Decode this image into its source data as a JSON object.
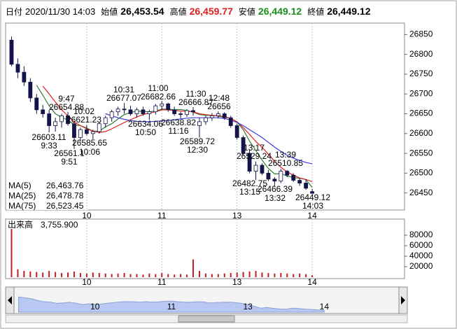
{
  "header": [
    {
      "label": "日付",
      "value": "2020/11/30 14:03"
    },
    {
      "label": "始値",
      "value": "26,453.54",
      "color": "#000000"
    },
    {
      "label": "高値",
      "value": "26,459.77",
      "color": "#e01e1e"
    },
    {
      "label": "安値",
      "value": "26,449.12",
      "color": "#1a8f1a"
    },
    {
      "label": "終値",
      "value": "26,449.12",
      "color": "#000000"
    }
  ],
  "chart_data": [
    {
      "type": "candlestick",
      "categories": [
        null,
        null,
        null,
        null,
        null,
        null,
        null,
        null,
        null,
        null,
        null,
        null,
        "10",
        null,
        null,
        null,
        null,
        null,
        null,
        null,
        null,
        null,
        null,
        null,
        "11",
        null,
        null,
        null,
        null,
        null,
        null,
        null,
        null,
        null,
        null,
        null,
        "13",
        null,
        null,
        null,
        null,
        null,
        null,
        null,
        null,
        null,
        null,
        null,
        "14"
      ],
      "open": [
        26836,
        26775,
        26755,
        26730,
        26690,
        26660,
        26650,
        26620,
        26630,
        26645,
        26625,
        26590,
        26610,
        26600,
        26605,
        26625,
        26640,
        26655,
        26662,
        26660,
        26650,
        26660,
        26650,
        26655,
        26670,
        26675,
        26660,
        26650,
        26648,
        26658,
        26620,
        26630,
        26640,
        26645,
        26650,
        26640,
        26620,
        26590,
        26550,
        26505,
        26520,
        26500,
        26485,
        26480,
        26505,
        26495,
        26482,
        26475,
        26453.54
      ],
      "high": [
        26845,
        26790,
        26770,
        26740,
        26700,
        26672,
        26660,
        26640,
        26650,
        26654.88,
        26630,
        26615,
        26621.23,
        26610,
        26630,
        26645,
        26660,
        26668,
        26677.07,
        26670,
        26665,
        26668,
        26660,
        26675,
        26682.66,
        26678,
        26668,
        26655,
        26662,
        26666.87,
        26640,
        26645,
        26652,
        26656.0,
        26654,
        26645,
        26625,
        26595,
        26560,
        26529.24,
        26525,
        26508,
        26490,
        26510.85,
        26508,
        26500,
        26488,
        26485,
        26459.77
      ],
      "low": [
        26770,
        26740,
        26720,
        26680,
        26650,
        26640,
        26603.11,
        26605,
        26615,
        26620,
        26561.1,
        26580,
        26595,
        26585.65,
        26600,
        26615,
        26630,
        26645,
        26650,
        26645,
        26640,
        26645,
        26634.06,
        26648,
        26660,
        26655,
        26645,
        26638.82,
        26642,
        26645,
        26589.72,
        26622,
        26632,
        26638,
        26635,
        26615,
        26585,
        26545,
        26500,
        26482.75,
        26495,
        26480,
        26466.39,
        26475,
        26490,
        26478,
        26468,
        26458,
        26449.12
      ],
      "close": [
        26775,
        26755,
        26730,
        26690,
        26660,
        26650,
        26620,
        26630,
        26645,
        26625,
        26590,
        26610,
        26600,
        26605,
        26625,
        26640,
        26655,
        26662,
        26660,
        26650,
        26660,
        26650,
        26655,
        26670,
        26675,
        26660,
        26650,
        26648,
        26658,
        26655,
        26630,
        26640,
        26645,
        26650,
        26640,
        26620,
        26590,
        26550,
        26505,
        26520,
        26500,
        26485,
        26480,
        26505,
        26495,
        26482,
        26475,
        26462,
        26449.12
      ],
      "up_color": "#ffffff",
      "down_color": "#14144a",
      "wick_color": "#14144a",
      "ylim": [
        26407,
        26879
      ],
      "yticks": [
        26450,
        26500,
        26550,
        26600,
        26650,
        26700,
        26750,
        26800,
        26850
      ],
      "x_grid": true,
      "series": [
        {
          "name": "MA(5)",
          "color": "#2e7d32",
          "latest": {
            "value": 26463.76,
            "label": "26,463.76"
          },
          "values": [
            null,
            null,
            null,
            null,
            26722,
            26697,
            26670,
            26650,
            26641,
            26634,
            26622,
            26620,
            26614,
            26606,
            26606,
            26617,
            26625,
            26637,
            26648,
            26653,
            26657,
            26656,
            26655,
            26657,
            26662,
            26662,
            26660,
            26661,
            26658,
            26654,
            26648,
            26646,
            26646,
            26644,
            26641,
            26639,
            26629,
            26610,
            26581,
            26557,
            26533,
            26512,
            26498,
            26499,
            26493,
            26489,
            26487,
            26484,
            26463.76
          ]
        },
        {
          "name": "MA(25)",
          "color": "#e02020",
          "latest": {
            "value": 26478.78,
            "label": "26,478.78"
          },
          "values": [
            null,
            null,
            null,
            null,
            null,
            26720,
            26700,
            26680,
            26660,
            26645,
            26630,
            26620,
            26612,
            26606,
            26603,
            26605,
            26612,
            26620,
            26628,
            26635,
            26642,
            26648,
            26652,
            26655,
            26660,
            26660,
            26658,
            26657,
            26656,
            26655,
            26650,
            26648,
            26646,
            26645,
            26643,
            26638,
            26630,
            26615,
            26598,
            26580,
            26565,
            26548,
            26530,
            26515,
            26503,
            26495,
            26488,
            26484,
            26478.78
          ]
        },
        {
          "name": "MA(75)",
          "color": "#3a3ae0",
          "latest": {
            "value": 26523.45,
            "label": "26,523.45"
          },
          "values": [
            null,
            null,
            null,
            null,
            null,
            null,
            null,
            null,
            null,
            null,
            null,
            null,
            null,
            null,
            null,
            26650,
            26645,
            26640,
            26636,
            26633,
            26631,
            26630,
            26630,
            26631,
            26632,
            26633,
            26635,
            26637,
            26639,
            26640,
            26640,
            26640,
            26640,
            26640,
            26638,
            26634,
            26628,
            26620,
            26610,
            26600,
            26590,
            26578,
            26566,
            26555,
            26545,
            26538,
            26532,
            26527,
            26523.45
          ]
        }
      ],
      "annotations": [
        {
          "time": "9:47",
          "price": 26654.88
        },
        {
          "time": "10:02",
          "price": 26621.23
        },
        {
          "time": "9:33",
          "price": 26603.11
        },
        {
          "time": "9:51",
          "price": 26561.1
        },
        {
          "time": "10:06",
          "price": 26585.65
        },
        {
          "time": "10:31",
          "price": 26677.07
        },
        {
          "time": "11:00",
          "price": 26682.66
        },
        {
          "time": "10:50",
          "price": 26634.06
        },
        {
          "time": "11:16",
          "price": 26638.82
        },
        {
          "time": "11:30",
          "price": 26666.87
        },
        {
          "time": "12:48",
          "price": 26656.0
        },
        {
          "time": "12:30",
          "price": 26589.72
        },
        {
          "time": "13:17",
          "price": 26529.24
        },
        {
          "time": "13:39",
          "price": 26510.85
        },
        {
          "time": "13:15",
          "price": 26482.75
        },
        {
          "time": "13:32",
          "price": 26466.39
        },
        {
          "time": "14:03",
          "price": 26449.12
        }
      ]
    },
    {
      "type": "bar",
      "title": "出来高",
      "latest": {
        "value": 3755.9,
        "label": "3,755.900"
      },
      "color": "#c81e1e",
      "categories": [
        null,
        null,
        null,
        null,
        null,
        null,
        null,
        null,
        null,
        null,
        null,
        null,
        "10",
        null,
        null,
        null,
        null,
        null,
        null,
        null,
        null,
        null,
        null,
        null,
        "11",
        null,
        null,
        null,
        null,
        null,
        null,
        null,
        null,
        null,
        null,
        null,
        "13",
        null,
        null,
        null,
        null,
        null,
        null,
        null,
        null,
        null,
        null,
        null,
        "14"
      ],
      "values": [
        92000,
        15000,
        12000,
        11000,
        10000,
        9000,
        12000,
        10000,
        8000,
        9000,
        11000,
        8000,
        7000,
        9000,
        8000,
        7000,
        6000,
        7000,
        8000,
        6000,
        6000,
        5000,
        7000,
        6000,
        8000,
        6000,
        5000,
        6000,
        5000,
        34000,
        12000,
        7000,
        6000,
        6000,
        7000,
        8000,
        9000,
        10000,
        11000,
        12000,
        9000,
        8000,
        7000,
        8000,
        7000,
        6000,
        7000,
        6000,
        3755.9
      ],
      "ylim": [
        0,
        104000
      ],
      "yticks": [
        20000,
        40000,
        60000,
        80000
      ],
      "x_grid": true
    }
  ]
}
